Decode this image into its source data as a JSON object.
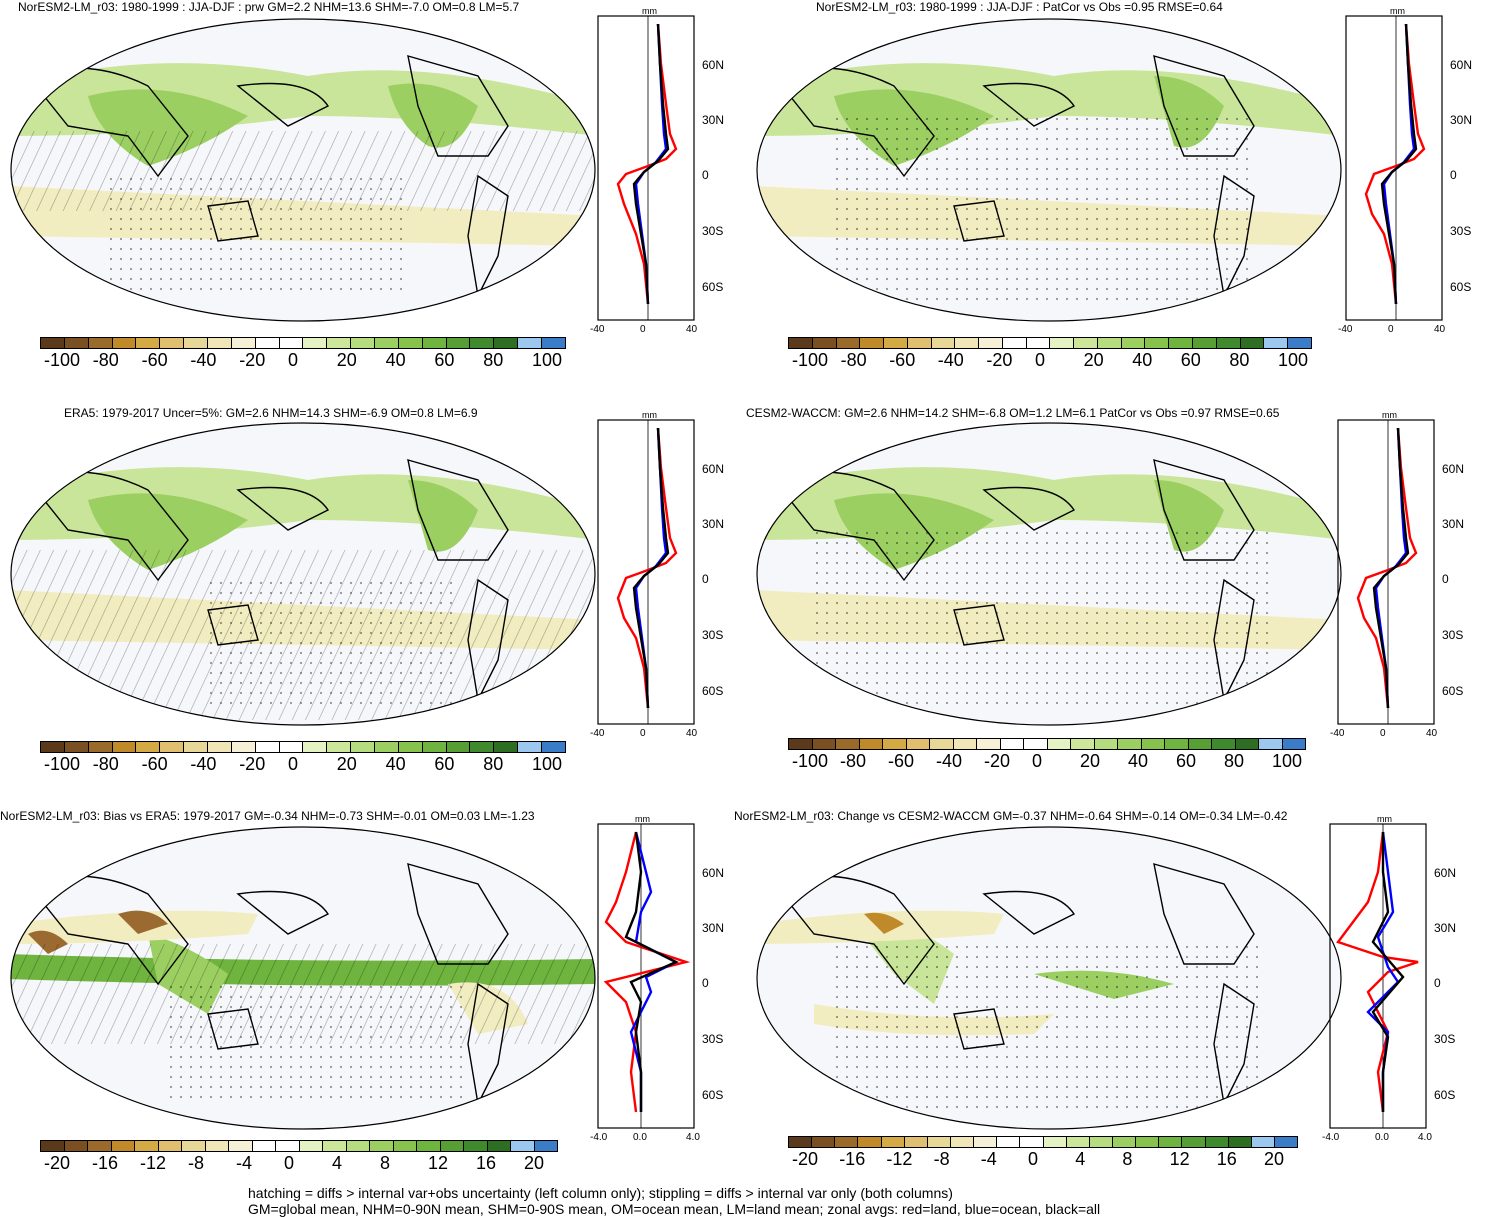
{
  "panels": [
    {
      "title": "NorESM2-LM_r03: 1980-1999 : JJA-DJF : prw GM=2.2 NHM=13.6 SHM=-7.0 OM=0.8 LM=5.7"
    },
    {
      "title": "NorESM2-LM_r03: 1980-1999 : JJA-DJF : PatCor vs Obs =0.95 RMSE=0.64"
    },
    {
      "title": "ERA5: 1979-2017 Uncer=5%: GM=2.6 NHM=14.3 SHM=-6.9 OM=0.8 LM=6.9"
    },
    {
      "title": "CESM2-WACCM: GM=2.6 NHM=14.2 SHM=-6.8 OM=1.2 LM=6.1 PatCor vs Obs =0.97 RMSE=0.65"
    },
    {
      "title": "NorESM2-LM_r03: Bias vs ERA5: 1979-2017 GM=-0.34 NHM=-0.73 SHM=-0.01 OM=0.03 LM=-1.23"
    },
    {
      "title": "NorESM2-LM_r03: Change vs CESM2-WACCM GM=-0.37 NHM=-0.64 SHM=-0.14 OM=-0.34 LM=-0.42"
    }
  ],
  "zonal_unit": "mm",
  "lat_labels": [
    "60N",
    "30N",
    "0",
    "30S",
    "60S"
  ],
  "zonal_ticks_top": [
    "-40",
    "0",
    "40"
  ],
  "zonal_ticks_bottom": [
    "-4.0",
    "0.0",
    "4.0"
  ],
  "cbar_labels_top": [
    "-100",
    "-80",
    "-60",
    "-40",
    "-20",
    "0",
    "20",
    "40",
    "60",
    "80",
    "100"
  ],
  "cbar_labels_bottom": [
    "-20",
    "-16",
    "-12",
    "-8",
    "-4",
    "0",
    "4",
    "8",
    "12",
    "16",
    "20"
  ],
  "colors": {
    "colorbar": [
      "#5a3a1a",
      "#7a4f22",
      "#9a6a2a",
      "#c08a2a",
      "#d4aa44",
      "#e0c070",
      "#e8d898",
      "#f0e6b8",
      "#f6f0d6",
      "#ffffff",
      "#ffffff",
      "#e4f2c4",
      "#cce79a",
      "#b6dc80",
      "#9ccf62",
      "#86c24c",
      "#6eb43e",
      "#579f35",
      "#3e8a2c",
      "#2d6e22",
      "#9cc8f0",
      "#3b7cc8"
    ],
    "land": "#000000",
    "ocean_bg": "#f6f7fb",
    "wet": "#bfe08a",
    "wet_dark": "#7fbf4f",
    "dry": "#f2edc0",
    "dry_dark": "#9b6a30",
    "line_land": "#ff0000",
    "line_ocean": "#0000ff",
    "line_all": "#000000"
  },
  "footnote": [
    "hatching = diffs > internal var+obs uncertainty (left column only); stippling = diffs > internal var only (both columns)",
    "GM=global mean, NHM=0-90N mean, SHM=0-90S mean, OM=ocean mean, LM=land mean; zonal avgs: red=land, blue=ocean, black=all"
  ]
}
